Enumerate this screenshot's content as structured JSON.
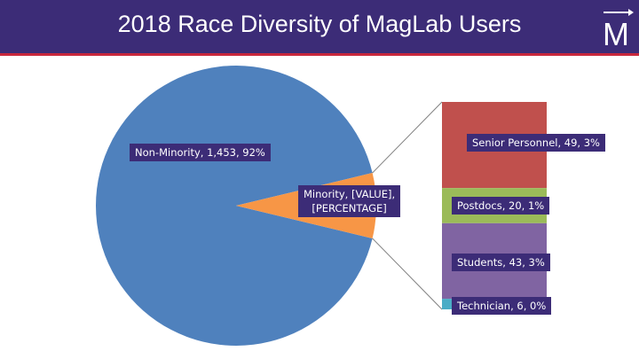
{
  "header": {
    "title": "2018 Race Diversity of MagLab Users",
    "logo_letter": "M"
  },
  "labels": {
    "non_minority": "Non-Minority, 1,453, 92%",
    "minority_line1": "Minority, [VALUE],",
    "minority_line2": "[PERCENTAGE]",
    "senior": "Senior Personnel, 49, 3%",
    "postdocs": "Postdocs, 20, 1%",
    "students": "Students, 43, 3%",
    "technician": "Technician, 6, 0%"
  },
  "colors": {
    "header_bg": "#3c2c77",
    "header_stripe": "#c8283c",
    "non_minority": "#4f81bd",
    "minority": "#f79646",
    "senior": "#c0504d",
    "postdocs": "#9bbb59",
    "students": "#8064a2",
    "technician": "#4bacc6"
  },
  "chart_data": {
    "type": "pie",
    "subtype": "pie-of-bar",
    "title": "2018 Race Diversity of MagLab Users",
    "slices": [
      {
        "name": "Non-Minority",
        "value": 1453,
        "percent": 92
      },
      {
        "name": "Minority",
        "value": 118,
        "percent": 8
      }
    ],
    "breakdown_of": "Minority",
    "breakdown": [
      {
        "name": "Senior Personnel",
        "value": 49,
        "percent": 3
      },
      {
        "name": "Postdocs",
        "value": 20,
        "percent": 1
      },
      {
        "name": "Students",
        "value": 43,
        "percent": 3
      },
      {
        "name": "Technician",
        "value": 6,
        "percent": 0
      }
    ]
  }
}
